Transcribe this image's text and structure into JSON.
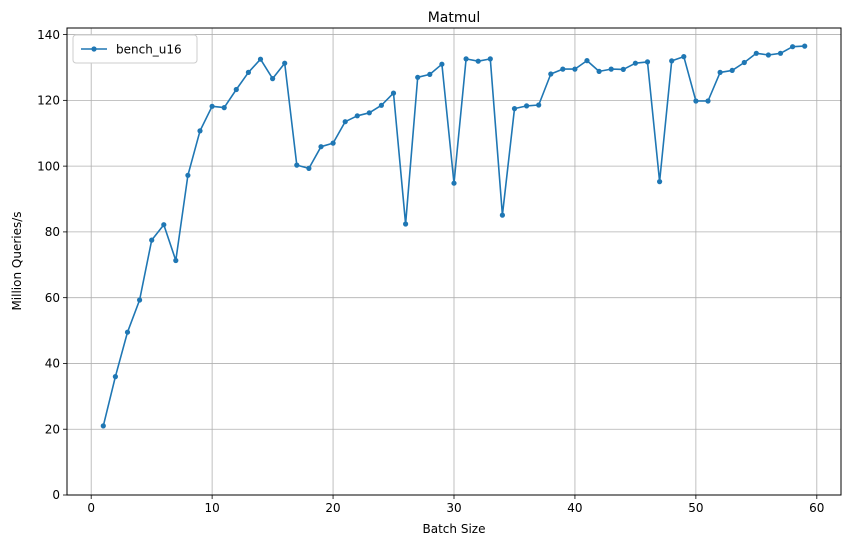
{
  "chart_data": {
    "type": "line",
    "title": "Matmul",
    "xlabel": "Batch Size",
    "ylabel": "Million Queries/s",
    "xlim": [
      -2,
      62
    ],
    "ylim": [
      0,
      142
    ],
    "xticks": [
      0,
      10,
      20,
      30,
      40,
      50,
      60
    ],
    "yticks": [
      0,
      20,
      40,
      60,
      80,
      100,
      120,
      140
    ],
    "grid": true,
    "legend_position": "top-left",
    "series": [
      {
        "name": "bench_u16",
        "color": "#1f77b4",
        "x": [
          1,
          2,
          3,
          4,
          5,
          6,
          7,
          8,
          9,
          10,
          11,
          12,
          13,
          14,
          15,
          16,
          17,
          18,
          19,
          20,
          21,
          22,
          23,
          24,
          25,
          26,
          27,
          28,
          29,
          30,
          31,
          32,
          33,
          34,
          35,
          36,
          37,
          38,
          39,
          40,
          41,
          42,
          43,
          44,
          45,
          46,
          47,
          48,
          49,
          50,
          51,
          52,
          53,
          54,
          55,
          56,
          57,
          58,
          59
        ],
        "y": [
          21,
          36,
          49.5,
          59.3,
          77.5,
          82.2,
          71.3,
          97.2,
          110.7,
          118.2,
          117.8,
          123.3,
          128.5,
          132.5,
          126.6,
          131.3,
          100.3,
          99.3,
          105.9,
          107,
          113.5,
          115.3,
          116.2,
          118.5,
          122.2,
          82.4,
          127,
          127.9,
          131,
          94.8,
          132.6,
          131.9,
          132.6,
          85.1,
          117.5,
          118.3,
          118.6,
          128,
          129.5,
          129.5,
          132.1,
          128.8,
          129.5,
          129.4,
          131.3,
          131.7,
          95.3,
          132,
          133.3,
          119.8,
          119.8,
          128.5,
          129.1,
          131.5,
          134.3,
          133.8,
          134.3,
          136.3,
          136.5
        ]
      }
    ]
  }
}
